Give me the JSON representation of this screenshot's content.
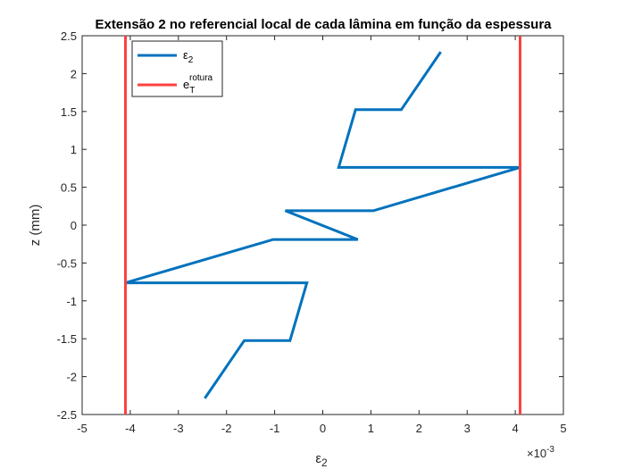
{
  "chart_data": {
    "type": "line",
    "title": "Extensão 2 no referencial local de cada lâmina em função da espessura",
    "xlabel": {
      "base": "ε",
      "sub": "2"
    },
    "ylabel": "z (mm)",
    "x_exponent": {
      "base": "×10",
      "exp": "-3"
    },
    "xlim": [
      -5,
      5
    ],
    "ylim": [
      -2.5,
      2.5
    ],
    "xticks": [
      -5,
      -4,
      -3,
      -2,
      -1,
      0,
      1,
      2,
      3,
      4,
      5
    ],
    "xtick_labels": [
      "-5",
      "-4",
      "-3",
      "-2",
      "-1",
      "0",
      "1",
      "2",
      "3",
      "4",
      "5"
    ],
    "yticks": [
      -2.5,
      -2,
      -1.5,
      -1,
      -0.5,
      0,
      0.5,
      1,
      1.5,
      2,
      2.5
    ],
    "ytick_labels": [
      "-2.5",
      "-2",
      "-1.5",
      "-1",
      "-0.5",
      "0",
      "0.5",
      "1",
      "1.5",
      "2",
      "2.5"
    ],
    "grid": false,
    "legend_position": "top-left",
    "series": [
      {
        "name": {
          "base": "ε",
          "sub": "2"
        },
        "color": "#0072BD",
        "points": [
          [
            -2.45,
            -2.286
          ],
          [
            -1.63,
            -1.524
          ],
          [
            -0.68,
            -1.524
          ],
          [
            -0.33,
            -0.762
          ],
          [
            -4.1,
            -0.762
          ],
          [
            -1.03,
            -0.19
          ],
          [
            0.73,
            -0.19
          ],
          [
            -0.78,
            0.19
          ],
          [
            1.05,
            0.19
          ],
          [
            4.1,
            0.762
          ],
          [
            0.33,
            0.762
          ],
          [
            0.68,
            1.524
          ],
          [
            1.63,
            1.524
          ],
          [
            2.45,
            2.286
          ]
        ]
      },
      {
        "name": {
          "base": "e",
          "sub": "T",
          "sup": "rotura"
        },
        "color": "#FF4040",
        "points": [
          [
            -4.1,
            -2.5
          ],
          [
            -4.1,
            2.5
          ]
        ]
      },
      {
        "name": "",
        "color": "#FF4040",
        "points": [
          [
            4.1,
            -2.5
          ],
          [
            4.1,
            2.5
          ]
        ]
      }
    ]
  }
}
